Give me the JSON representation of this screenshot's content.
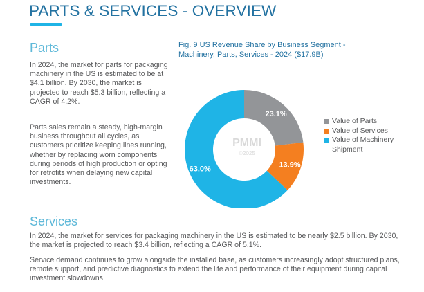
{
  "page": {
    "title": "PARTS & SERVICES - OVERVIEW",
    "accent_color": "#1fb4e6",
    "title_color": "#2372a1"
  },
  "parts": {
    "heading": "Parts",
    "paragraphs": [
      "In 2024, the market for parts for packaging machinery in the US is estimated to be at $4.1 billion. By 2030, the market is projected to reach $5.3 billion, reflecting a CAGR of 4.2%.",
      "Parts sales remain a steady, high-margin business throughout all cycles, as customers prioritize keeping lines running, whether by replacing worn components during periods of high production or opting for retrofits when delaying new capital investments."
    ]
  },
  "services": {
    "heading": "Services",
    "paragraphs": [
      "In 2024, the market for services for packaging machinery in the US is estimated to be nearly $2.5 billion. By 2030, the market is projected to reach $3.4 billion, reflecting a CAGR of 5.1%.",
      "Service demand continues to grow alongside the installed base, as customers increasingly adopt structured plans, remote support, and predictive diagnostics to extend the life and performance of their equipment during capital investment slowdowns."
    ]
  },
  "chart_data": {
    "type": "pie",
    "variant": "donut",
    "title": "Fig. 9 US Revenue Share by Business Segment - Machinery, Parts, Services - 2024 ($17.9B)",
    "categories": [
      "Value of Parts",
      "Value of Services",
      "Value of Machinery Shipment"
    ],
    "values": [
      23.1,
      13.9,
      63.0
    ],
    "labels": [
      "23.1%",
      "13.9%",
      "63.0%"
    ],
    "colors": [
      "#939598",
      "#f47f20",
      "#1fb4e6"
    ],
    "unit": "%",
    "legend_position": "right",
    "watermark": {
      "brand": "PMMI",
      "copyright": "©2025"
    }
  }
}
